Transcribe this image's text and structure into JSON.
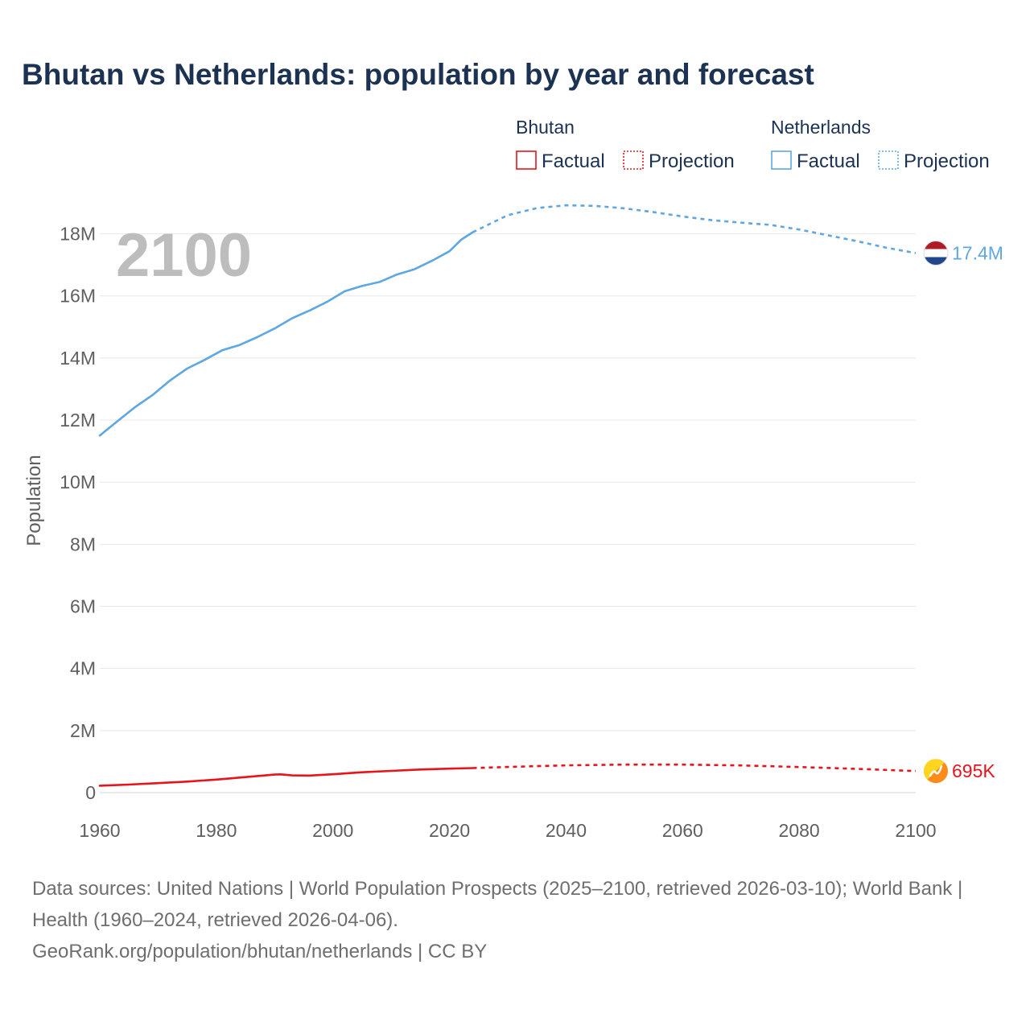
{
  "title": "Bhutan vs Netherlands: population by year and forecast",
  "chart_data": {
    "type": "line",
    "title": "Bhutan vs Netherlands: population by year and forecast",
    "year_label": "2100",
    "ylabel": "Population",
    "xlim": [
      1960,
      2100
    ],
    "ylim": [
      0,
      19000000
    ],
    "grid": true,
    "x_ticks": [
      1960,
      1980,
      2000,
      2020,
      2040,
      2060,
      2080,
      2100
    ],
    "x_tick_labels": [
      "1960",
      "1980",
      "2000",
      "2020",
      "2040",
      "2060",
      "2080",
      "2100"
    ],
    "y_ticks": [
      0,
      2000000,
      4000000,
      6000000,
      8000000,
      10000000,
      12000000,
      14000000,
      16000000,
      18000000
    ],
    "y_tick_labels": [
      "0",
      "2M",
      "4M",
      "6M",
      "8M",
      "10M",
      "12M",
      "14M",
      "16M",
      "18M"
    ],
    "legend": {
      "placement": "top-right",
      "groups": [
        {
          "title": "Bhutan",
          "factual_label": "Factual",
          "projection_label": "Projection",
          "color": "#e8141b"
        },
        {
          "title": "Netherlands",
          "factual_label": "Factual",
          "projection_label": "Projection",
          "color": "#5ea7e1"
        }
      ]
    },
    "series": [
      {
        "name": "Netherlands",
        "color": "#5ea7e1",
        "end_label": "17.4M",
        "flag": "netherlands-flag",
        "factual": {
          "x": [
            1960,
            1963,
            1966,
            1969,
            1972,
            1975,
            1978,
            1981,
            1984,
            1987,
            1990,
            1993,
            1996,
            1999,
            2002,
            2005,
            2008,
            2011,
            2014,
            2017,
            2020,
            2022,
            2024
          ],
          "y": [
            11500000,
            11960000,
            12410000,
            12800000,
            13270000,
            13660000,
            13940000,
            14250000,
            14420000,
            14670000,
            14950000,
            15280000,
            15530000,
            15810000,
            16150000,
            16320000,
            16450000,
            16690000,
            16860000,
            17130000,
            17440000,
            17810000,
            18050000
          ]
        },
        "projection": {
          "x": [
            2024,
            2030,
            2035,
            2040,
            2045,
            2050,
            2055,
            2060,
            2065,
            2070,
            2075,
            2080,
            2085,
            2090,
            2095,
            2100
          ],
          "y": [
            18050000,
            18600000,
            18830000,
            18920000,
            18900000,
            18820000,
            18700000,
            18560000,
            18440000,
            18360000,
            18290000,
            18140000,
            17950000,
            17760000,
            17550000,
            17380000
          ]
        }
      },
      {
        "name": "Bhutan",
        "color": "#e8141b",
        "end_label": "695K",
        "flag": "bhutan-flag",
        "factual": {
          "x": [
            1960,
            1965,
            1970,
            1975,
            1980,
            1985,
            1990,
            1991,
            1993,
            1996,
            2000,
            2005,
            2010,
            2015,
            2020,
            2024
          ],
          "y": [
            224000,
            260000,
            306000,
            356000,
            420000,
            500000,
            580000,
            588000,
            556000,
            549000,
            591000,
            657000,
            699000,
            743000,
            772000,
            791000
          ]
        },
        "projection": {
          "x": [
            2024,
            2030,
            2040,
            2050,
            2060,
            2070,
            2080,
            2090,
            2100
          ],
          "y": [
            791000,
            827000,
            878000,
            903000,
            903000,
            877000,
            825000,
            764000,
            695000
          ]
        }
      }
    ]
  },
  "footer": {
    "sources": "Data sources: United Nations | World Population Prospects (2025–2100, retrieved 2026-03-10); World Bank | Health (1960–2024, retrieved 2026-04-06).",
    "credit": "GeoRank.org/population/bhutan/netherlands | CC BY"
  }
}
